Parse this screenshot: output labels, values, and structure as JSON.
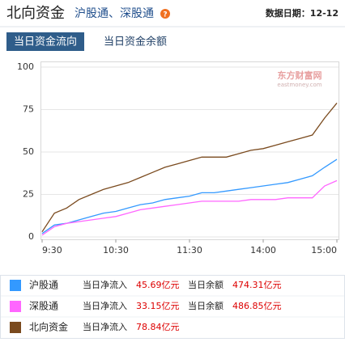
{
  "header": {
    "title": "北向资金",
    "subtitle": "沪股通、深股通",
    "help_icon": "?",
    "date_label": "数据日期：12-12"
  },
  "tabs": [
    "当日资金流向",
    "当日资金余额"
  ],
  "watermark": {
    "name": "东方财富网",
    "url": "eastmoney.com"
  },
  "chart_data": {
    "type": "line",
    "categories": [
      "9:30",
      null,
      null,
      null,
      null,
      null,
      "10:30",
      null,
      null,
      null,
      null,
      null,
      "11:30",
      null,
      null,
      null,
      null,
      null,
      "14:00",
      null,
      null,
      null,
      null,
      null,
      "15:00"
    ],
    "series": [
      {
        "name": "沪股通",
        "color": "#3399ff",
        "values": [
          2,
          7,
          8,
          10,
          12,
          14,
          15,
          17,
          19,
          20,
          22,
          23,
          24,
          26,
          26,
          27,
          28,
          29,
          30,
          31,
          32,
          34,
          36,
          41,
          45.69
        ]
      },
      {
        "name": "深股通",
        "color": "#ff66ff",
        "values": [
          1,
          6,
          8,
          9,
          10,
          11,
          12,
          14,
          16,
          17,
          18,
          19,
          20,
          21,
          21,
          21,
          21,
          22,
          22,
          22,
          23,
          23,
          23,
          30,
          33.15
        ]
      },
      {
        "name": "北向资金",
        "color": "#7a4a1e",
        "values": [
          3,
          14,
          17,
          22,
          25,
          28,
          30,
          32,
          35,
          38,
          41,
          43,
          45,
          47,
          47,
          47,
          49,
          51,
          52,
          54,
          56,
          58,
          60,
          70,
          78.84
        ]
      }
    ],
    "ylim": [
      0,
      100
    ],
    "yticks": [
      0,
      25,
      50,
      75,
      100
    ],
    "grid": true
  },
  "summary": [
    {
      "net_label": "当日净流入",
      "net": "45.69亿元",
      "balance_label": "当日余额",
      "balance": "474.31亿元"
    },
    {
      "net_label": "当日净流入",
      "net": "33.15亿元",
      "balance_label": "当日余额",
      "balance": "486.85亿元"
    },
    {
      "net_label": "当日净流入",
      "net": "78.84亿元"
    }
  ]
}
